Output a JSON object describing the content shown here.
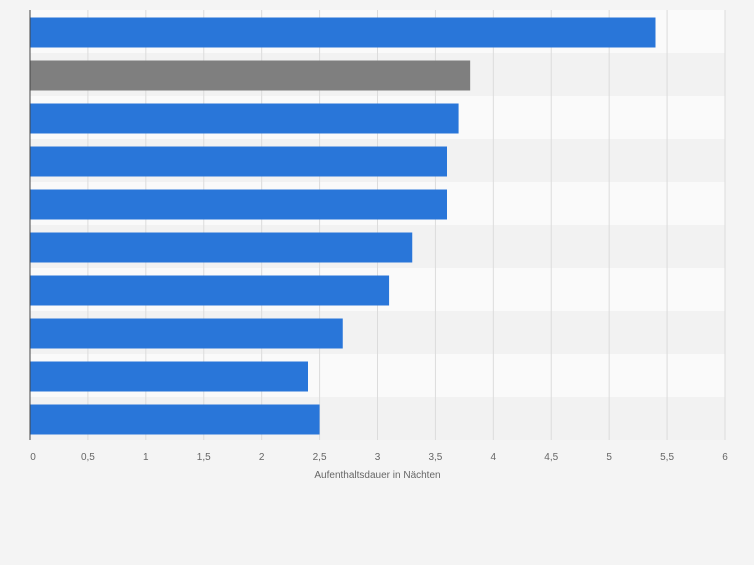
{
  "chart_data": {
    "type": "bar",
    "orientation": "horizontal",
    "categories": [
      "",
      "",
      "",
      "",
      "",
      "",
      "",
      "",
      "",
      ""
    ],
    "values": [
      5.4,
      3.8,
      3.7,
      3.6,
      3.6,
      3.3,
      3.1,
      2.7,
      2.4,
      2.5
    ],
    "highlight_index": 1,
    "xlabel": "Aufenthaltsdauer in Nächten",
    "ylabel": "",
    "xlim": [
      0,
      6
    ],
    "xticks": [
      0,
      0.5,
      1,
      1.5,
      2,
      2.5,
      3,
      3.5,
      4,
      4.5,
      5,
      5.5,
      6
    ],
    "xtick_labels": [
      "0",
      "0,5",
      "1",
      "1,5",
      "2",
      "2,5",
      "3",
      "3,5",
      "4",
      "4,5",
      "5",
      "5,5",
      "6"
    ],
    "grid": true,
    "colors": {
      "bar": "#2976d9",
      "highlight": "#7f7f7f",
      "band_light": "#fafafa",
      "band_dark": "#f2f2f2",
      "grid": "#dcdcdc",
      "axis": "#444444",
      "text": "#666666"
    }
  }
}
